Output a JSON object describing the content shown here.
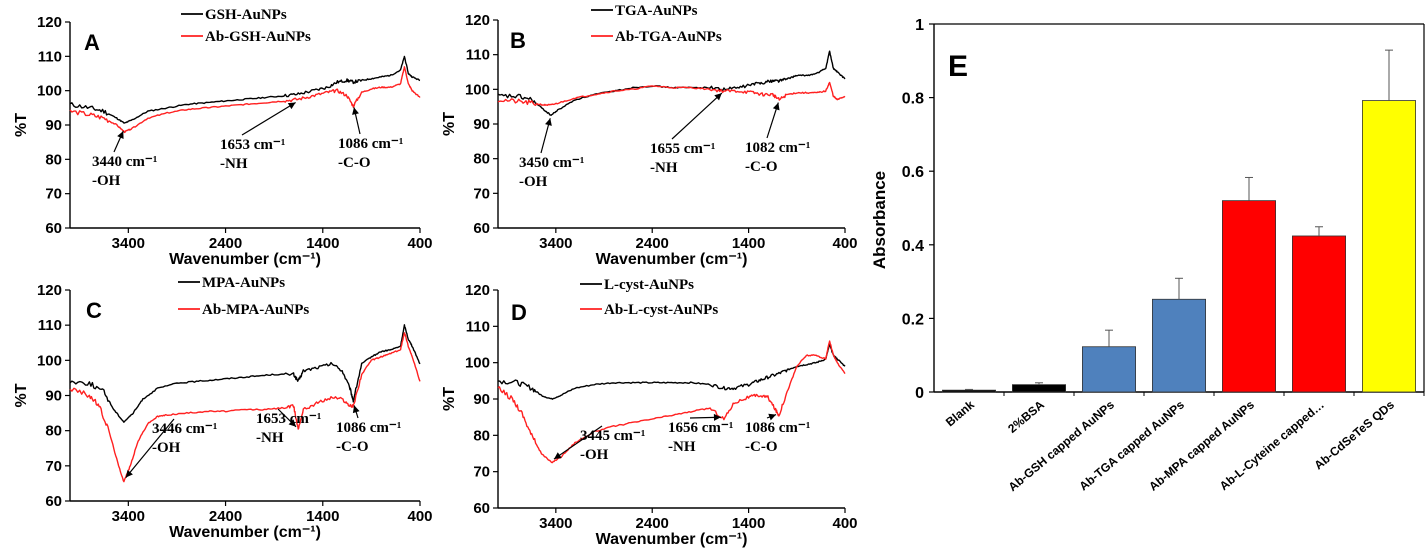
{
  "chart_data": [
    {
      "panel": "A",
      "type": "line",
      "xlabel": "Wavenumber (cm⁻¹)",
      "ylabel": "%T",
      "xlim": [
        4000,
        400
      ],
      "ylim": [
        60,
        120
      ],
      "xticks": [
        3400,
        2400,
        1400,
        400
      ],
      "yticks": [
        60,
        70,
        80,
        90,
        100,
        110,
        120
      ],
      "legend_position": "top-center",
      "series": [
        {
          "name": "GSH-AuNPs",
          "color": "#000000",
          "x": [
            4000,
            3800,
            3650,
            3520,
            3440,
            3360,
            3200,
            3000,
            2800,
            2600,
            2400,
            2200,
            2000,
            1800,
            1653,
            1500,
            1350,
            1250,
            1150,
            1086,
            1000,
            900,
            800,
            700,
            600,
            560,
            520,
            480,
            400
          ],
          "y": [
            96,
            95,
            94,
            92,
            90.5,
            91.5,
            94,
            95,
            96,
            96.5,
            97,
            97.5,
            98,
            98.5,
            99,
            100,
            101,
            102.5,
            103,
            102.5,
            103,
            103.5,
            104,
            104.5,
            106,
            110,
            105,
            104,
            103
          ]
        },
        {
          "name": "Ab-GSH-AuNPs",
          "color": "#ff2020",
          "x": [
            4000,
            3800,
            3650,
            3520,
            3440,
            3360,
            3200,
            3000,
            2800,
            2600,
            2400,
            2200,
            2000,
            1800,
            1653,
            1500,
            1350,
            1250,
            1150,
            1086,
            1000,
            900,
            800,
            700,
            600,
            560,
            520,
            480,
            400
          ],
          "y": [
            94,
            93,
            92,
            90,
            88,
            89,
            92,
            93.5,
            94.5,
            95,
            95.5,
            96,
            96.5,
            97,
            97.5,
            98.5,
            99.5,
            100,
            98.5,
            95.5,
            99.5,
            100.5,
            101,
            101,
            102,
            107,
            102,
            100,
            98
          ]
        }
      ],
      "annotations": [
        {
          "text": [
            "3440 cm⁻¹",
            "-OH"
          ],
          "x": 3440,
          "y": 89
        },
        {
          "text": [
            "1653 cm⁻¹",
            "-NH"
          ],
          "x": 1653,
          "y": 97
        },
        {
          "text": [
            "1086 cm⁻¹",
            "-C-O"
          ],
          "x": 1086,
          "y": 96
        }
      ]
    },
    {
      "panel": "B",
      "type": "line",
      "xlabel": "Wavenumber (cm⁻¹)",
      "ylabel": "%T",
      "xlim": [
        4000,
        400
      ],
      "ylim": [
        60,
        120
      ],
      "xticks": [
        3400,
        2400,
        1400,
        400
      ],
      "yticks": [
        60,
        70,
        80,
        90,
        100,
        110,
        120
      ],
      "legend_position": "top-center",
      "series": [
        {
          "name": "TGA-AuNPs",
          "color": "#000000",
          "x": [
            4000,
            3800,
            3650,
            3520,
            3450,
            3380,
            3200,
            3000,
            2800,
            2600,
            2400,
            2200,
            2000,
            1800,
            1655,
            1500,
            1350,
            1250,
            1150,
            1082,
            1000,
            900,
            800,
            700,
            600,
            560,
            520,
            480,
            400
          ],
          "y": [
            98,
            98,
            97,
            94,
            92.5,
            94,
            97,
            98.5,
            99.5,
            100.5,
            101,
            100.5,
            100.5,
            100.5,
            100,
            100.5,
            101.5,
            102,
            102.5,
            102.5,
            103,
            104,
            104,
            104.5,
            106,
            111,
            106,
            105,
            103
          ]
        },
        {
          "name": "Ab-TGA-AuNPs",
          "color": "#ff2020",
          "x": [
            4000,
            3800,
            3650,
            3520,
            3450,
            3380,
            3200,
            3000,
            2800,
            2600,
            2400,
            2200,
            2000,
            1800,
            1655,
            1500,
            1350,
            1250,
            1150,
            1082,
            1000,
            900,
            800,
            700,
            600,
            560,
            520,
            480,
            400
          ],
          "y": [
            97,
            96.5,
            96,
            95.5,
            95.5,
            96,
            97.5,
            98.5,
            99.5,
            100,
            101,
            100.5,
            100.5,
            100,
            99.5,
            99.5,
            99,
            98.5,
            98.5,
            97,
            98.5,
            99,
            99,
            99,
            99.5,
            102,
            98,
            97,
            98
          ]
        }
      ],
      "annotations": [
        {
          "text": [
            "3450 cm⁻¹",
            "-OH"
          ],
          "x": 3450,
          "y": 92.5
        },
        {
          "text": [
            "1655 cm⁻¹",
            "-NH"
          ],
          "x": 1655,
          "y": 99.5
        },
        {
          "text": [
            "1082 cm⁻¹",
            "-C-O"
          ],
          "x": 1082,
          "y": 97
        }
      ]
    },
    {
      "panel": "C",
      "type": "line",
      "xlabel": "Wavenumber (cm⁻¹)",
      "ylabel": "%T",
      "xlim": [
        4000,
        400
      ],
      "ylim": [
        60,
        120
      ],
      "xticks": [
        3400,
        2400,
        1400,
        400
      ],
      "yticks": [
        60,
        70,
        80,
        90,
        100,
        110,
        120
      ],
      "legend_position": "top-center",
      "series": [
        {
          "name": "MPA-AuNPs",
          "color": "#000000",
          "x": [
            4000,
            3800,
            3650,
            3550,
            3446,
            3350,
            3250,
            3100,
            2900,
            2700,
            2500,
            2300,
            2100,
            1900,
            1700,
            1653,
            1600,
            1450,
            1300,
            1200,
            1120,
            1086,
            1000,
            900,
            800,
            700,
            600,
            560,
            520,
            480,
            400
          ],
          "y": [
            94,
            93.5,
            91,
            86,
            82.5,
            85,
            89,
            92,
            93.5,
            94,
            94.5,
            95,
            95.5,
            96,
            96,
            94,
            97,
            98,
            99,
            97,
            92,
            88.5,
            99,
            101,
            102.5,
            103,
            104,
            110,
            106,
            104,
            99
          ]
        },
        {
          "name": "Ab-MPA-AuNPs",
          "color": "#ff2020",
          "x": [
            4000,
            3800,
            3700,
            3600,
            3500,
            3446,
            3380,
            3300,
            3200,
            3100,
            3000,
            2800,
            2600,
            2400,
            2200,
            2000,
            1800,
            1700,
            1653,
            1600,
            1450,
            1300,
            1200,
            1120,
            1086,
            1000,
            900,
            800,
            700,
            600,
            560,
            520,
            480,
            400
          ],
          "y": [
            92,
            90,
            87,
            80,
            70,
            65.5,
            70,
            77,
            82,
            84,
            84.5,
            85,
            85.5,
            85.5,
            86,
            86,
            86.5,
            87,
            80.5,
            86,
            88,
            89.5,
            89,
            87,
            87,
            96,
            100,
            101,
            102,
            103,
            108,
            104,
            101,
            94
          ]
        }
      ],
      "annotations": [
        {
          "text": [
            "3446 cm⁻¹",
            "-OH"
          ],
          "x": 3446,
          "y": 66
        },
        {
          "text": [
            "1653 cm⁻¹",
            "-NH"
          ],
          "x": 1653,
          "y": 80.5
        },
        {
          "text": [
            "1086 cm⁻¹",
            "-C-O"
          ],
          "x": 1086,
          "y": 88
        }
      ]
    },
    {
      "panel": "D",
      "type": "line",
      "xlabel": "Wavenumber (cm⁻¹)",
      "ylabel": "%T",
      "xlim": [
        4000,
        400
      ],
      "ylim": [
        60,
        120
      ],
      "xticks": [
        3400,
        2400,
        1400,
        400
      ],
      "yticks": [
        60,
        70,
        80,
        90,
        100,
        110,
        120
      ],
      "legend_position": "top-center",
      "series": [
        {
          "name": "L-cyst-AuNPs",
          "color": "#000000",
          "x": [
            4000,
            3800,
            3650,
            3550,
            3445,
            3350,
            3200,
            3000,
            2800,
            2600,
            2400,
            2200,
            2000,
            1800,
            1656,
            1550,
            1400,
            1300,
            1200,
            1086,
            1000,
            900,
            800,
            700,
            600,
            560,
            520,
            480,
            400
          ],
          "y": [
            95,
            94.5,
            93,
            91,
            90,
            91,
            93,
            94,
            94.5,
            94.5,
            94.5,
            94.5,
            94.5,
            94,
            93,
            93,
            94,
            95,
            96,
            97,
            98,
            99,
            99.5,
            100,
            101,
            105,
            102,
            101,
            99
          ]
        },
        {
          "name": "Ab-L-cyst-AuNPs",
          "color": "#ff2020",
          "x": [
            4000,
            3850,
            3750,
            3650,
            3550,
            3445,
            3350,
            3200,
            3000,
            2800,
            2600,
            2400,
            2200,
            2000,
            1800,
            1656,
            1550,
            1400,
            1300,
            1200,
            1120,
            1086,
            1000,
            900,
            800,
            700,
            600,
            560,
            520,
            480,
            400
          ],
          "y": [
            93,
            90,
            86,
            80,
            75,
            72.5,
            74,
            78,
            81,
            82.5,
            83.5,
            84.5,
            85.5,
            86.5,
            87.5,
            84.5,
            89,
            90.5,
            91,
            90.5,
            87,
            85.5,
            92,
            99,
            102,
            102,
            101,
            106,
            102,
            100,
            97
          ]
        }
      ],
      "annotations": [
        {
          "text": [
            "3445 cm⁻¹",
            "-OH"
          ],
          "x": 3445,
          "y": 73
        },
        {
          "text": [
            "1656 cm⁻¹",
            "-NH"
          ],
          "x": 1656,
          "y": 85
        },
        {
          "text": [
            "1086 cm⁻¹",
            "-C-O"
          ],
          "x": 1086,
          "y": 86
        }
      ]
    },
    {
      "panel": "E",
      "type": "bar",
      "ylabel": "Absorbance",
      "ylim": [
        0,
        1
      ],
      "yticks": [
        0,
        0.2,
        0.4,
        0.6,
        0.8,
        1
      ],
      "ytick_labels": [
        "0",
        "0.2",
        "0.4",
        "0.6",
        "0.8",
        "1"
      ],
      "categories": [
        "Blank",
        "2%BSA",
        "Ab-GSH capped AuNPs",
        "Ab-TGA capped AuNPs",
        "Ab-MPA capped  AuNPs",
        "Ab-L-Cyteine capped…",
        "Ab-CdSeTeS QDs"
      ],
      "values": [
        0.005,
        0.02,
        0.123,
        0.252,
        0.52,
        0.424,
        0.792
      ],
      "errors": [
        0.002,
        0.005,
        0.045,
        0.057,
        0.063,
        0.025,
        0.137
      ],
      "colors": [
        "#000000",
        "#000000",
        "#4f81bd",
        "#4f81bd",
        "#ff0000",
        "#ff0000",
        "#ffff00"
      ]
    }
  ]
}
